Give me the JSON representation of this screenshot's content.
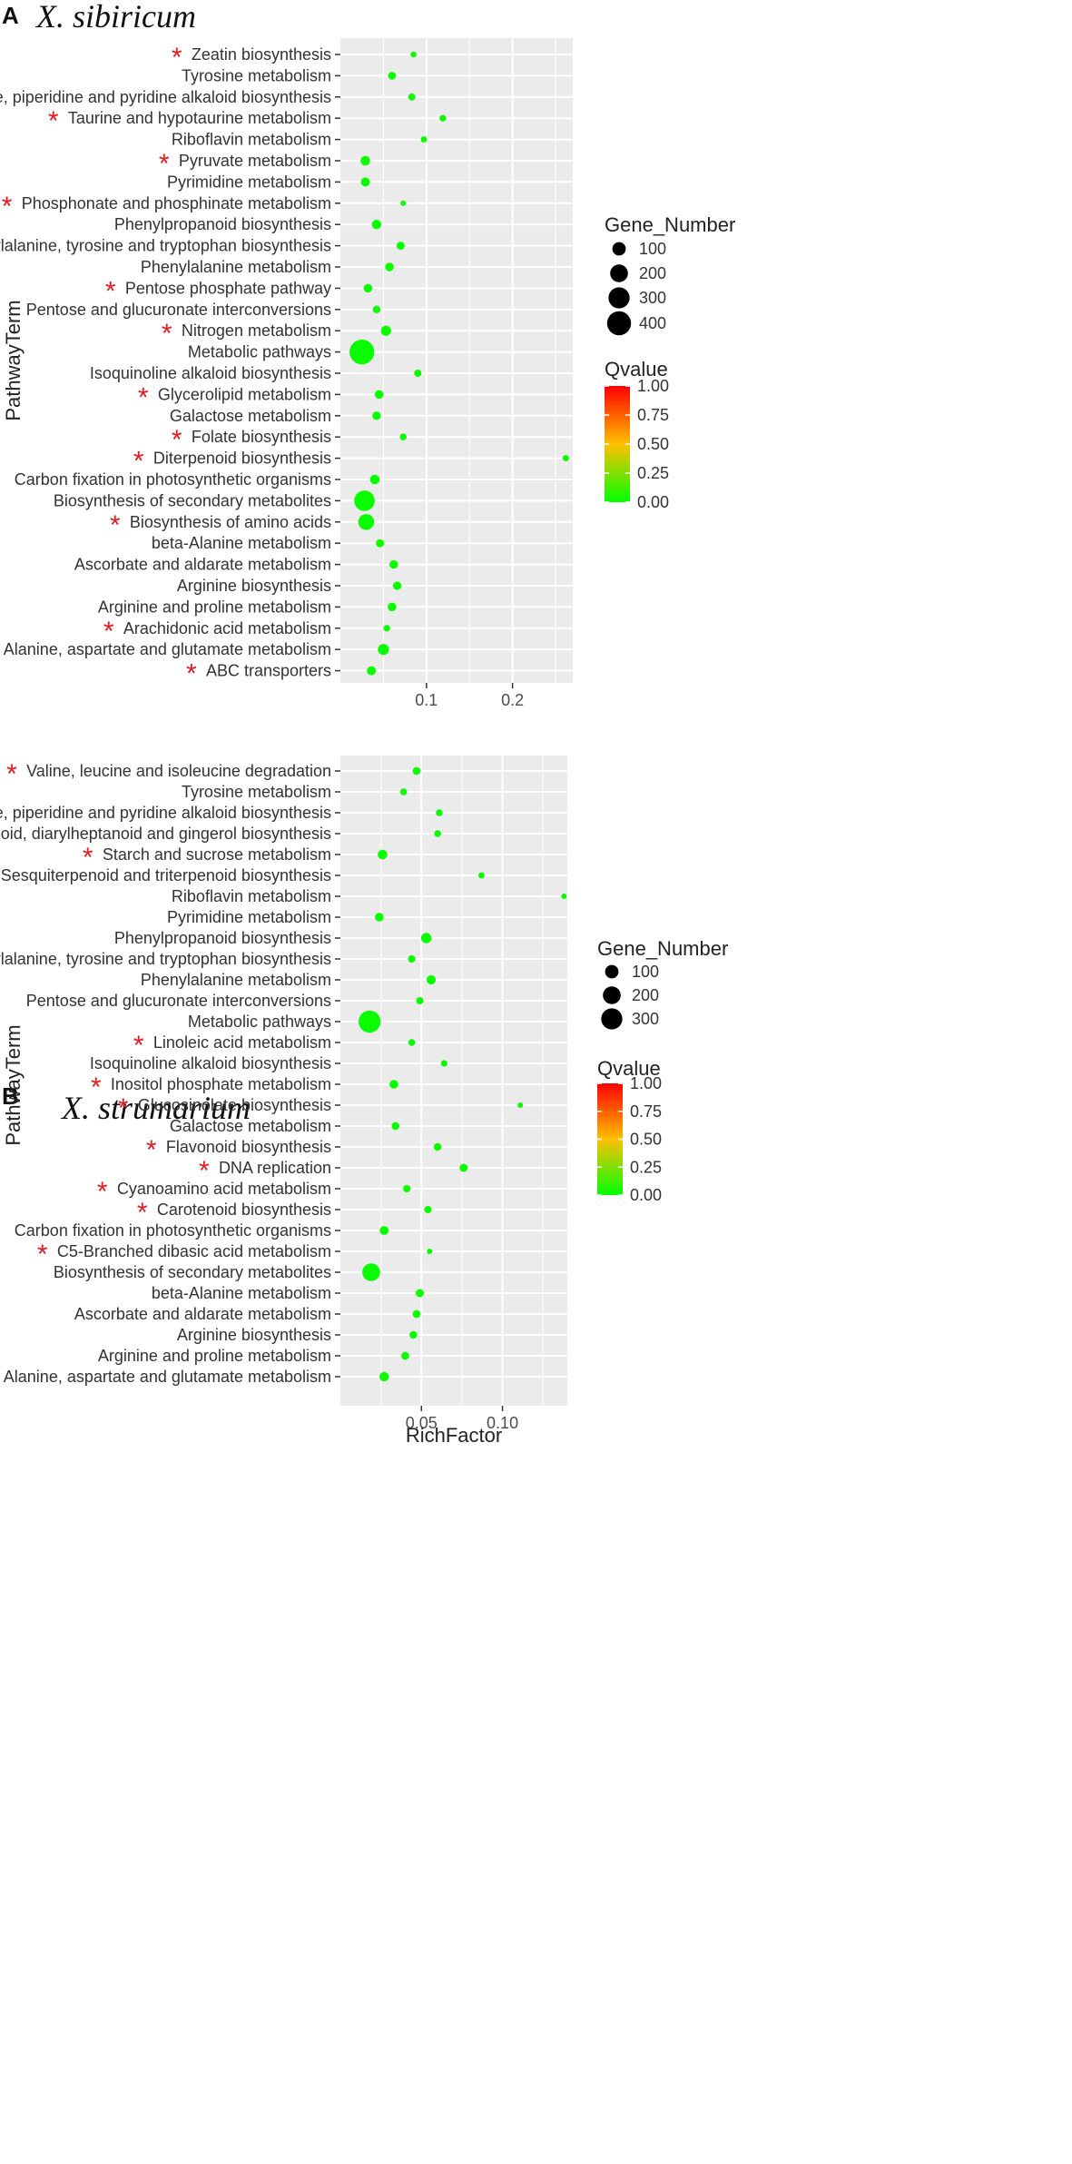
{
  "colors": {
    "low": "#00ff00",
    "mid": "#ffbf00",
    "high": "#ff0000",
    "star": "#e41a1c",
    "panel_bg": "#ebebeb",
    "grid": "#ffffff"
  },
  "chart_data": [
    {
      "type": "scatter",
      "panel": "A",
      "title": "X. sibiricum",
      "xlabel": "",
      "ylabel": "PathwayTerm",
      "xlim": [
        0.0,
        0.27
      ],
      "xticks": [
        0.1,
        0.2
      ],
      "xtick_labels": [
        "0.1",
        "0.2"
      ],
      "size_legend": {
        "title": "Gene_Number",
        "values": [
          100,
          200,
          300,
          400
        ]
      },
      "color_legend": {
        "title": "Qvalue",
        "ticks": [
          1.0,
          0.75,
          0.5,
          0.25,
          0.0
        ],
        "tick_labels": [
          "1.00",
          "0.75",
          "0.50",
          "0.25",
          "0.00"
        ]
      },
      "points": [
        {
          "term": "Zeatin biosynthesis",
          "rich": 0.085,
          "genes": 8,
          "q": 0.02,
          "starred": true
        },
        {
          "term": "Tyrosine metabolism",
          "rich": 0.06,
          "genes": 22,
          "q": 0.02,
          "starred": false
        },
        {
          "term": "Tropane, piperidine and pyridine alkaloid biosynthesis",
          "rich": 0.083,
          "genes": 16,
          "q": 0.02,
          "starred": false
        },
        {
          "term": "Taurine and hypotaurine metabolism",
          "rich": 0.119,
          "genes": 12,
          "q": 0.02,
          "starred": true
        },
        {
          "term": "Riboflavin metabolism",
          "rich": 0.097,
          "genes": 10,
          "q": 0.02,
          "starred": false
        },
        {
          "term": "Pyruvate metabolism",
          "rich": 0.029,
          "genes": 40,
          "q": 0.02,
          "starred": true
        },
        {
          "term": "Pyrimidine metabolism",
          "rich": 0.029,
          "genes": 34,
          "q": 0.02,
          "starred": false
        },
        {
          "term": "Phosphonate and phosphinate metabolism",
          "rich": 0.073,
          "genes": 5,
          "q": 0.02,
          "starred": true
        },
        {
          "term": "Phenylpropanoid biosynthesis",
          "rich": 0.042,
          "genes": 38,
          "q": 0.02,
          "starred": false
        },
        {
          "term": "Phenylalanine, tyrosine and tryptophan biosynthesis",
          "rich": 0.07,
          "genes": 24,
          "q": 0.02,
          "starred": false
        },
        {
          "term": "Phenylalanine metabolism",
          "rich": 0.057,
          "genes": 30,
          "q": 0.02,
          "starred": false
        },
        {
          "term": "Pentose phosphate pathway",
          "rich": 0.032,
          "genes": 30,
          "q": 0.02,
          "starred": true
        },
        {
          "term": "Pentose and glucuronate interconversions",
          "rich": 0.042,
          "genes": 20,
          "q": 0.02,
          "starred": false
        },
        {
          "term": "Nitrogen metabolism",
          "rich": 0.053,
          "genes": 48,
          "q": 0.02,
          "starred": true
        },
        {
          "term": "Metabolic pathways",
          "rich": 0.025,
          "genes": 430,
          "q": 0.02,
          "starred": false
        },
        {
          "term": "Isoquinoline alkaloid biosynthesis",
          "rich": 0.09,
          "genes": 18,
          "q": 0.02,
          "starred": false
        },
        {
          "term": "Glycerolipid metabolism",
          "rich": 0.045,
          "genes": 30,
          "q": 0.02,
          "starred": true
        },
        {
          "term": "Galactose metabolism",
          "rich": 0.042,
          "genes": 28,
          "q": 0.02,
          "starred": false
        },
        {
          "term": "Folate biosynthesis",
          "rich": 0.073,
          "genes": 14,
          "q": 0.02,
          "starred": true
        },
        {
          "term": "Diterpenoid biosynthesis",
          "rich": 0.262,
          "genes": 10,
          "q": 0.02,
          "starred": true
        },
        {
          "term": "Carbon fixation in photosynthetic organisms",
          "rich": 0.04,
          "genes": 40,
          "q": 0.02,
          "starred": false
        },
        {
          "term": "Biosynthesis of secondary metabolites",
          "rich": 0.028,
          "genes": 280,
          "q": 0.02,
          "starred": false
        },
        {
          "term": "Biosynthesis of amino acids",
          "rich": 0.03,
          "genes": 150,
          "q": 0.02,
          "starred": true
        },
        {
          "term": "beta-Alanine metabolism",
          "rich": 0.046,
          "genes": 24,
          "q": 0.02,
          "starred": false
        },
        {
          "term": "Ascorbate and aldarate metabolism",
          "rich": 0.062,
          "genes": 28,
          "q": 0.02,
          "starred": false
        },
        {
          "term": "Arginine biosynthesis",
          "rich": 0.066,
          "genes": 28,
          "q": 0.02,
          "starred": false
        },
        {
          "term": "Arginine and proline metabolism",
          "rich": 0.06,
          "genes": 30,
          "q": 0.02,
          "starred": false
        },
        {
          "term": "Arachidonic acid metabolism",
          "rich": 0.054,
          "genes": 12,
          "q": 0.02,
          "starred": true
        },
        {
          "term": "Alanine, aspartate and glutamate metabolism",
          "rich": 0.05,
          "genes": 60,
          "q": 0.02,
          "starred": false
        },
        {
          "term": "ABC transporters",
          "rich": 0.036,
          "genes": 34,
          "q": 0.02,
          "starred": true
        }
      ]
    },
    {
      "type": "scatter",
      "panel": "B",
      "title": "X. strumarium",
      "xlabel": "RichFactor",
      "ylabel": "PathwayTerm",
      "xlim": [
        0.0,
        0.14
      ],
      "xticks": [
        0.05,
        0.1
      ],
      "xtick_labels": [
        "0.05",
        "0.10"
      ],
      "size_legend": {
        "title": "Gene_Number",
        "values": [
          100,
          200,
          300
        ]
      },
      "color_legend": {
        "title": "Qvalue",
        "ticks": [
          1.0,
          0.75,
          0.5,
          0.25,
          0.0
        ],
        "tick_labels": [
          "1.00",
          "0.75",
          "0.50",
          "0.25",
          "0.00"
        ]
      },
      "points": [
        {
          "term": "Valine, leucine and isoleucine degradation",
          "rich": 0.047,
          "genes": 22,
          "q": 0.02,
          "starred": true
        },
        {
          "term": "Tyrosine metabolism",
          "rich": 0.039,
          "genes": 14,
          "q": 0.02,
          "starred": false
        },
        {
          "term": "Tropane, piperidine and pyridine alkaloid biosynthesis",
          "rich": 0.061,
          "genes": 14,
          "q": 0.02,
          "starred": false
        },
        {
          "term": "Stilbenoid, diarylheptanoid and gingerol biosynthesis",
          "rich": 0.06,
          "genes": 14,
          "q": 0.02,
          "starred": true
        },
        {
          "term": "Starch and sucrose metabolism",
          "rich": 0.026,
          "genes": 40,
          "q": 0.02,
          "starred": true
        },
        {
          "term": "Sesquiterpenoid and triterpenoid biosynthesis",
          "rich": 0.087,
          "genes": 10,
          "q": 0.02,
          "starred": true
        },
        {
          "term": "Riboflavin metabolism",
          "rich": 0.138,
          "genes": 6,
          "q": 0.02,
          "starred": false
        },
        {
          "term": "Pyrimidine metabolism",
          "rich": 0.024,
          "genes": 30,
          "q": 0.02,
          "starred": false
        },
        {
          "term": "Phenylpropanoid biosynthesis",
          "rich": 0.053,
          "genes": 50,
          "q": 0.02,
          "starred": false
        },
        {
          "term": "Phenylalanine, tyrosine and tryptophan biosynthesis",
          "rich": 0.044,
          "genes": 18,
          "q": 0.02,
          "starred": false
        },
        {
          "term": "Phenylalanine metabolism",
          "rich": 0.056,
          "genes": 36,
          "q": 0.02,
          "starred": false
        },
        {
          "term": "Pentose and glucuronate interconversions",
          "rich": 0.049,
          "genes": 18,
          "q": 0.02,
          "starred": false
        },
        {
          "term": "Metabolic pathways",
          "rich": 0.018,
          "genes": 330,
          "q": 0.02,
          "starred": false
        },
        {
          "term": "Linoleic acid metabolism",
          "rich": 0.044,
          "genes": 14,
          "q": 0.02,
          "starred": true
        },
        {
          "term": "Isoquinoline alkaloid biosynthesis",
          "rich": 0.064,
          "genes": 12,
          "q": 0.02,
          "starred": false
        },
        {
          "term": "Inositol phosphate metabolism",
          "rich": 0.033,
          "genes": 30,
          "q": 0.02,
          "starred": true
        },
        {
          "term": "Glucosinolate biosynthesis",
          "rich": 0.111,
          "genes": 6,
          "q": 0.02,
          "starred": true
        },
        {
          "term": "Galactose metabolism",
          "rich": 0.034,
          "genes": 22,
          "q": 0.02,
          "starred": false
        },
        {
          "term": "Flavonoid biosynthesis",
          "rich": 0.06,
          "genes": 20,
          "q": 0.02,
          "starred": true
        },
        {
          "term": "DNA replication",
          "rich": 0.076,
          "genes": 24,
          "q": 0.02,
          "starred": true
        },
        {
          "term": "Cyanoamino acid metabolism",
          "rich": 0.041,
          "genes": 18,
          "q": 0.02,
          "starred": true
        },
        {
          "term": "Carotenoid biosynthesis",
          "rich": 0.054,
          "genes": 18,
          "q": 0.02,
          "starred": true
        },
        {
          "term": "Carbon fixation in photosynthetic organisms",
          "rich": 0.027,
          "genes": 32,
          "q": 0.02,
          "starred": false
        },
        {
          "term": "C5-Branched dibasic acid metabolism",
          "rich": 0.055,
          "genes": 5,
          "q": 0.02,
          "starred": true
        },
        {
          "term": "Biosynthesis of secondary metabolites",
          "rich": 0.019,
          "genes": 200,
          "q": 0.02,
          "starred": false
        },
        {
          "term": "beta-Alanine metabolism",
          "rich": 0.049,
          "genes": 24,
          "q": 0.02,
          "starred": false
        },
        {
          "term": "Ascorbate and aldarate metabolism",
          "rich": 0.047,
          "genes": 22,
          "q": 0.02,
          "starred": false
        },
        {
          "term": "Arginine biosynthesis",
          "rich": 0.045,
          "genes": 20,
          "q": 0.02,
          "starred": false
        },
        {
          "term": "Arginine and proline metabolism",
          "rich": 0.04,
          "genes": 22,
          "q": 0.02,
          "starred": false
        },
        {
          "term": "Alanine, aspartate and glutamate metabolism",
          "rich": 0.027,
          "genes": 38,
          "q": 0.02,
          "starred": false
        }
      ]
    }
  ]
}
